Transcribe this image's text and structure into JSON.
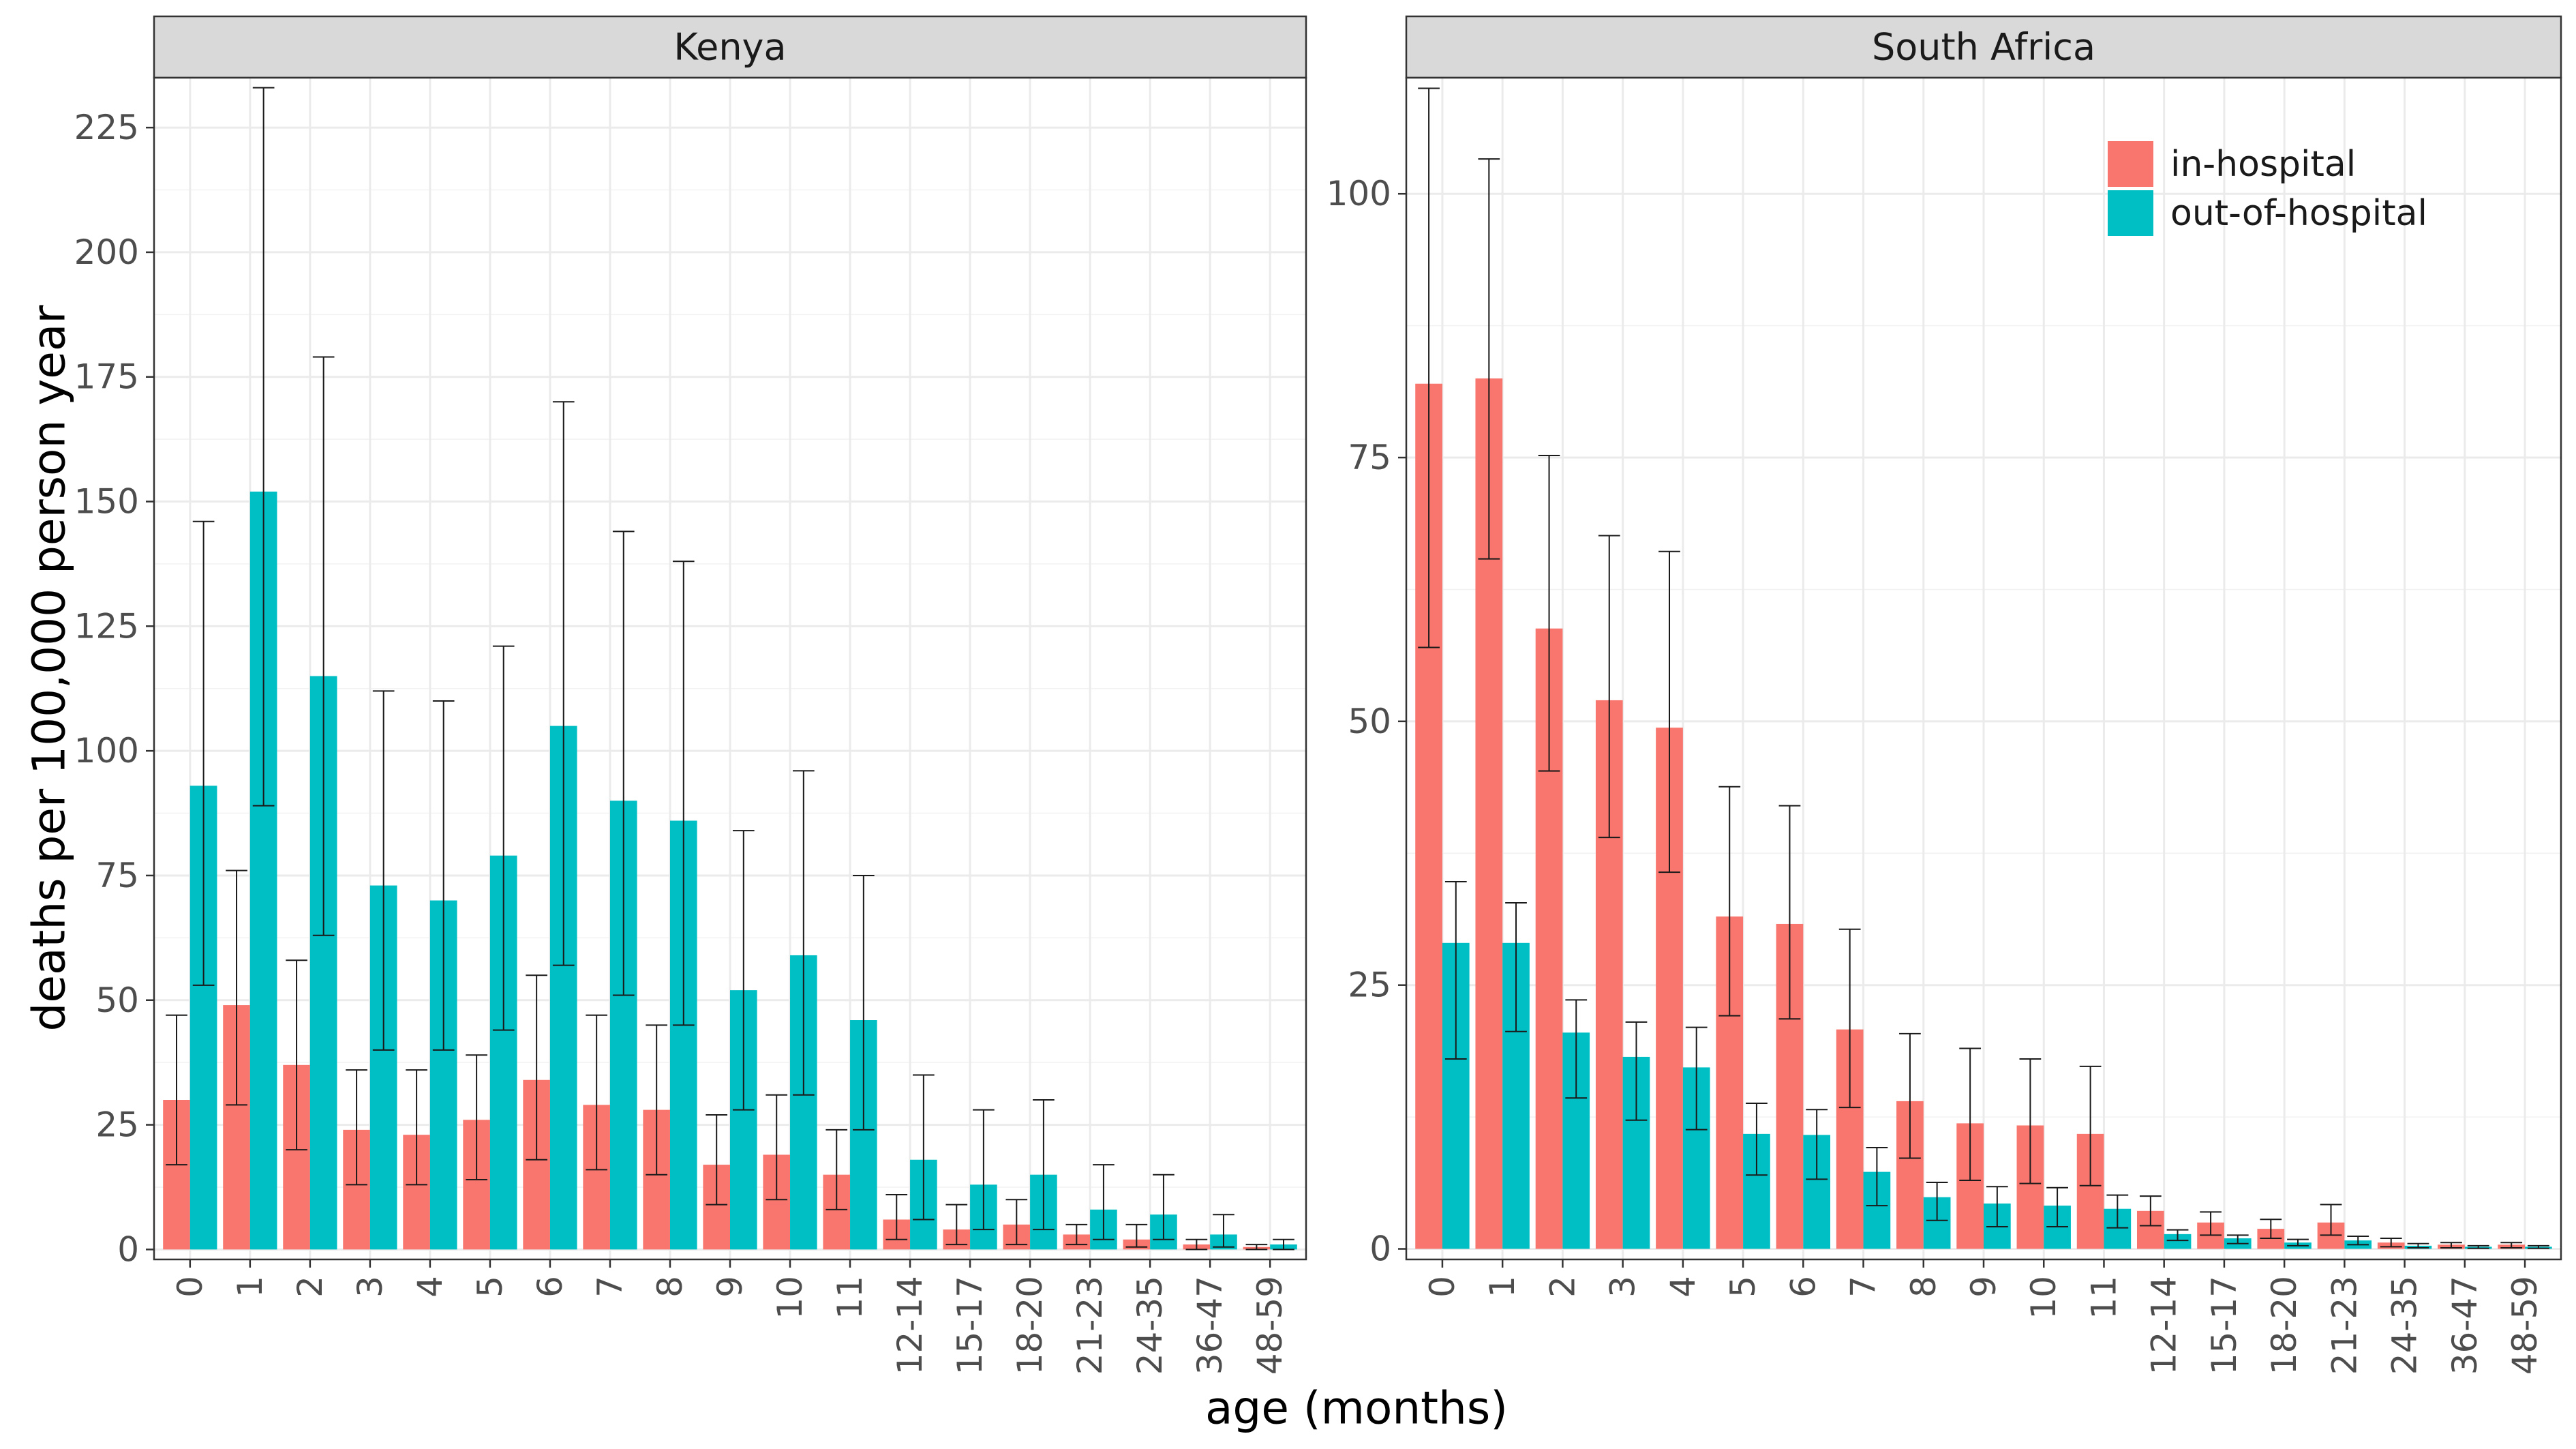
{
  "chart_data": {
    "type": "bar",
    "xlabel": "age (months)",
    "ylabel": "deaths per 100,000 person year",
    "categories": [
      "0",
      "1",
      "2",
      "3",
      "4",
      "5",
      "6",
      "7",
      "8",
      "9",
      "10",
      "11",
      "12-14",
      "15-17",
      "18-20",
      "21-23",
      "24-35",
      "36-47",
      "48-59"
    ],
    "legend": {
      "position": "top-right",
      "entries": [
        "in-hospital",
        "out-of-hospital"
      ]
    },
    "colors": {
      "in-hospital": "#F8766D",
      "out-of-hospital": "#00BFC4",
      "strip_background": "#D9D9D9",
      "grid": "#EBEBEB"
    },
    "grid": true,
    "panels": [
      {
        "name": "Kenya",
        "ylim": [
          -2,
          235
        ],
        "yticks": [
          0,
          25,
          50,
          75,
          100,
          125,
          150,
          175,
          200,
          225
        ],
        "series": [
          {
            "name": "in-hospital",
            "values": [
              30,
              49,
              37,
              24,
              23,
              26,
              34,
              29,
              28,
              17,
              19,
              15,
              6,
              4,
              5,
              3,
              2,
              1,
              0.5
            ],
            "lower": [
              17,
              29,
              20,
              13,
              13,
              14,
              18,
              16,
              15,
              9,
              10,
              8,
              2,
              1,
              1,
              1,
              0.5,
              0,
              0
            ],
            "upper": [
              47,
              76,
              58,
              36,
              36,
              39,
              55,
              47,
              45,
              27,
              31,
              24,
              11,
              9,
              10,
              5,
              5,
              2,
              1
            ]
          },
          {
            "name": "out-of-hospital",
            "values": [
              93,
              152,
              115,
              73,
              70,
              79,
              105,
              90,
              86,
              52,
              59,
              46,
              18,
              13,
              15,
              8,
              7,
              3,
              1
            ],
            "lower": [
              53,
              89,
              63,
              40,
              40,
              44,
              57,
              51,
              45,
              28,
              31,
              24,
              6,
              4,
              4,
              2,
              2,
              0.5,
              0
            ],
            "upper": [
              146,
              233,
              179,
              112,
              110,
              121,
              170,
              144,
              138,
              84,
              96,
              75,
              35,
              28,
              30,
              17,
              15,
              7,
              2
            ]
          }
        ]
      },
      {
        "name": "South Africa",
        "ylim": [
          -1,
          111
        ],
        "yticks": [
          0,
          25,
          50,
          75,
          100
        ],
        "series": [
          {
            "name": "in-hospital",
            "values": [
              82,
              82.5,
              58.8,
              52,
              49.4,
              31.5,
              30.8,
              20.8,
              14,
              11.9,
              11.7,
              10.9,
              3.6,
              2.5,
              1.9,
              2.5,
              0.6,
              0.4,
              0.4
            ],
            "lower": [
              57,
              65.4,
              45.3,
              39,
              35.7,
              22.1,
              21.8,
              13.4,
              8.6,
              6.5,
              6.2,
              6.0,
              2.2,
              1.3,
              1.0,
              1.3,
              0.2,
              0.1,
              0.1
            ],
            "upper": [
              110,
              103.3,
              75.2,
              67.6,
              66.1,
              43.8,
              42,
              30.3,
              20.4,
              19,
              18,
              17.3,
              5,
              3.5,
              2.8,
              4.2,
              1,
              0.6,
              0.6
            ]
          },
          {
            "name": "out-of-hospital",
            "values": [
              29,
              29,
              20.5,
              18.2,
              17.2,
              10.9,
              10.8,
              7.3,
              4.9,
              4.3,
              4.1,
              3.8,
              1.4,
              1.0,
              0.6,
              0.8,
              0.3,
              0.2,
              0.2
            ],
            "lower": [
              18,
              20.6,
              14.3,
              12.2,
              11.3,
              7.0,
              6.6,
              4.1,
              2.7,
              2.1,
              2.1,
              2.0,
              0.8,
              0.5,
              0.3,
              0.4,
              0.1,
              0.05,
              0.05
            ],
            "upper": [
              34.8,
              32.8,
              23.6,
              21.5,
              21,
              13.8,
              13.2,
              9.6,
              6.3,
              5.9,
              5.8,
              5.1,
              1.8,
              1.3,
              0.9,
              1.2,
              0.5,
              0.3,
              0.3
            ]
          }
        ]
      }
    ]
  }
}
